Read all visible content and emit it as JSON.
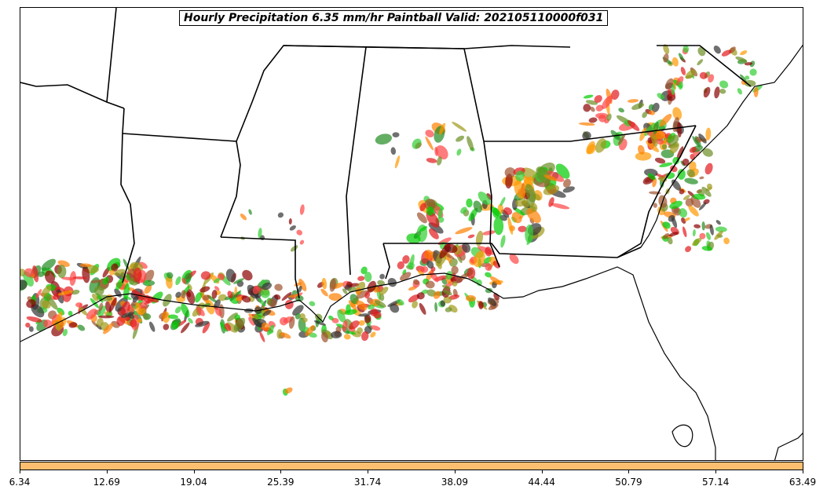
{
  "map": {
    "title": "Hourly Precipitation 6.35 mm/hr Paintball Valid: 202105110000f031",
    "colorbar": {
      "color": "#fdbf6f",
      "ticks": [
        "6.34",
        "12.69",
        "19.04",
        "25.39",
        "31.74",
        "38.09",
        "44.44",
        "50.79",
        "57.14",
        "63.49"
      ]
    },
    "member_colors": [
      "#e31a1c",
      "#ff7f00",
      "#ff9900",
      "#00cc00",
      "#228b22",
      "#8b0000",
      "#a0522d",
      "#9e9a1a",
      "#6b8e23",
      "#333333",
      "#ff4444",
      "#32cd32"
    ]
  }
}
